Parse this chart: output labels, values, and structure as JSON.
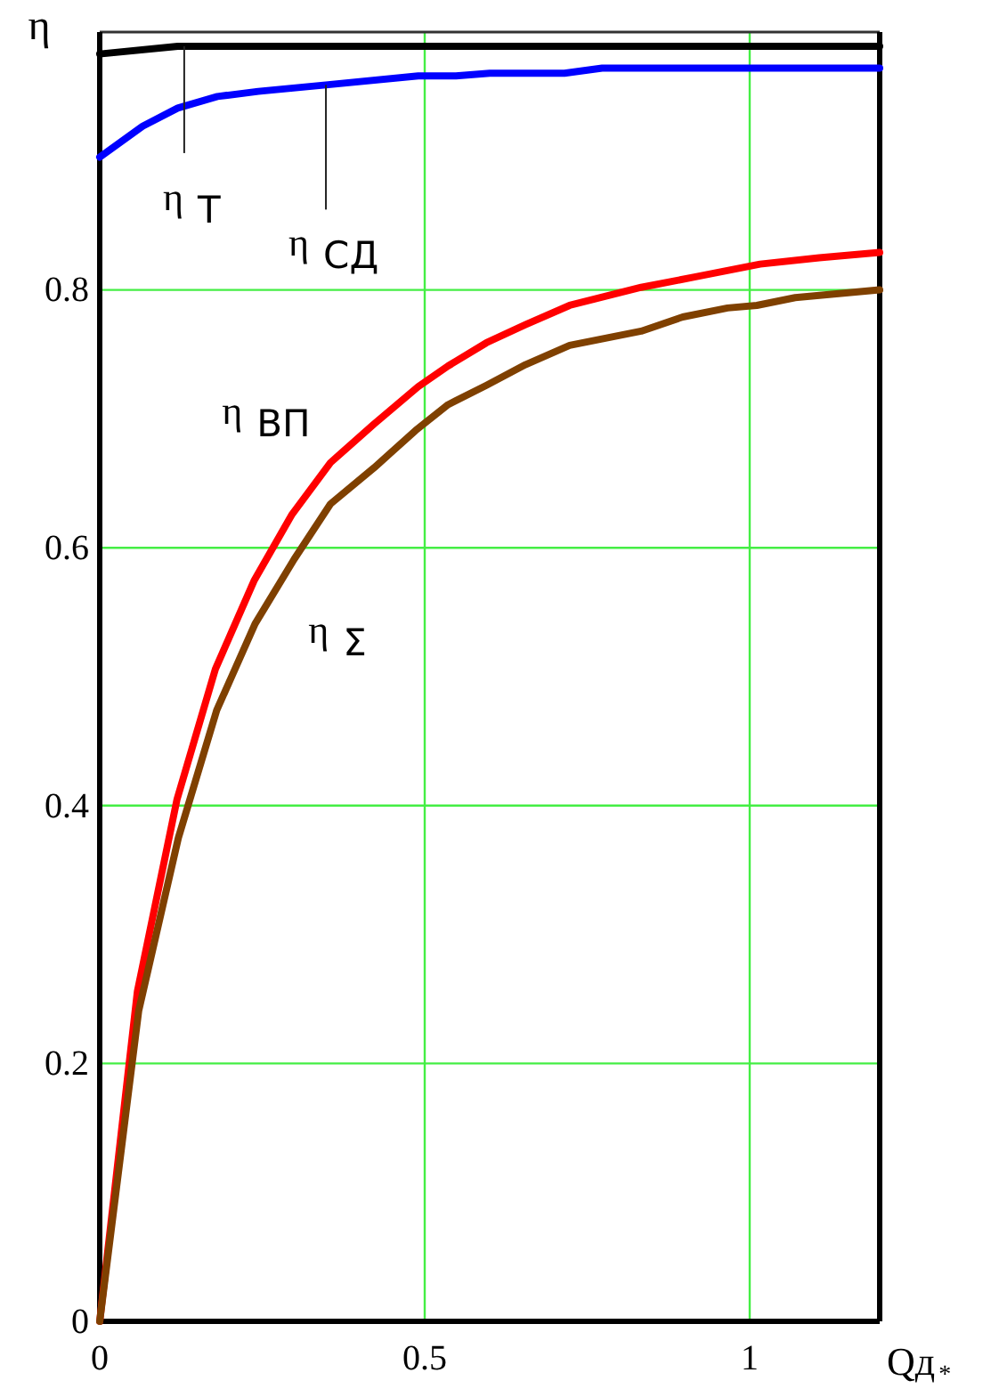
{
  "chart_data": {
    "type": "line",
    "xlabel": "Qд$_{*}$",
    "ylabel": "η",
    "xlim": [
      0,
      1.2
    ],
    "ylim": [
      0,
      1
    ],
    "xticks": [
      0,
      0.5,
      1
    ],
    "yticks": [
      0,
      0.2,
      0.4,
      0.6,
      0.8
    ],
    "grid": true,
    "series": [
      {
        "color": "#000000",
        "x": [
          0,
          0.12,
          1.2
        ],
        "values": [
          0.983,
          0.989,
          0.989
        ]
      },
      {
        "color": "#0000ff",
        "x": [
          0,
          0.066,
          0.12,
          0.181,
          0.244,
          0.348,
          0.49,
          0.548,
          0.6,
          0.715,
          0.773,
          1.2
        ],
        "values": [
          0.903,
          0.927,
          0.941,
          0.95,
          0.954,
          0.959,
          0.966,
          0.966,
          0.968,
          0.968,
          0.972,
          0.972
        ]
      },
      {
        "color": "#ff0000",
        "x": [
          0,
          0.058,
          0.119,
          0.178,
          0.238,
          0.296,
          0.355,
          0.422,
          0.49,
          0.536,
          0.595,
          0.655,
          0.723,
          0.833,
          0.915,
          1.016,
          1.107,
          1.2
        ],
        "values": [
          0,
          0.256,
          0.405,
          0.506,
          0.575,
          0.626,
          0.666,
          0.696,
          0.725,
          0.741,
          0.759,
          0.773,
          0.788,
          0.802,
          0.81,
          0.82,
          0.825,
          0.829
        ]
      },
      {
        "color": "#7f4000",
        "x": [
          0,
          0.06,
          0.121,
          0.18,
          0.239,
          0.299,
          0.355,
          0.422,
          0.486,
          0.536,
          0.595,
          0.655,
          0.723,
          0.833,
          0.897,
          0.966,
          1.011,
          1.07,
          1.2
        ],
        "values": [
          0,
          0.241,
          0.375,
          0.474,
          0.541,
          0.591,
          0.634,
          0.662,
          0.691,
          0.711,
          0.726,
          0.742,
          0.757,
          0.768,
          0.779,
          0.786,
          0.788,
          0.794,
          0.8
        ]
      }
    ],
    "annotations": [
      {
        "text": "η$_{Т}$",
        "x": 0.13,
        "y": 0.989
      },
      {
        "text": "η$_{СД}$",
        "x": 0.348,
        "y": 0.959
      },
      {
        "text": "η$_{ВП}$",
        "x": 0.355,
        "y": 0.666
      },
      {
        "text": "η$_{Σ}$",
        "x": 0.299,
        "y": 0.591
      }
    ]
  }
}
